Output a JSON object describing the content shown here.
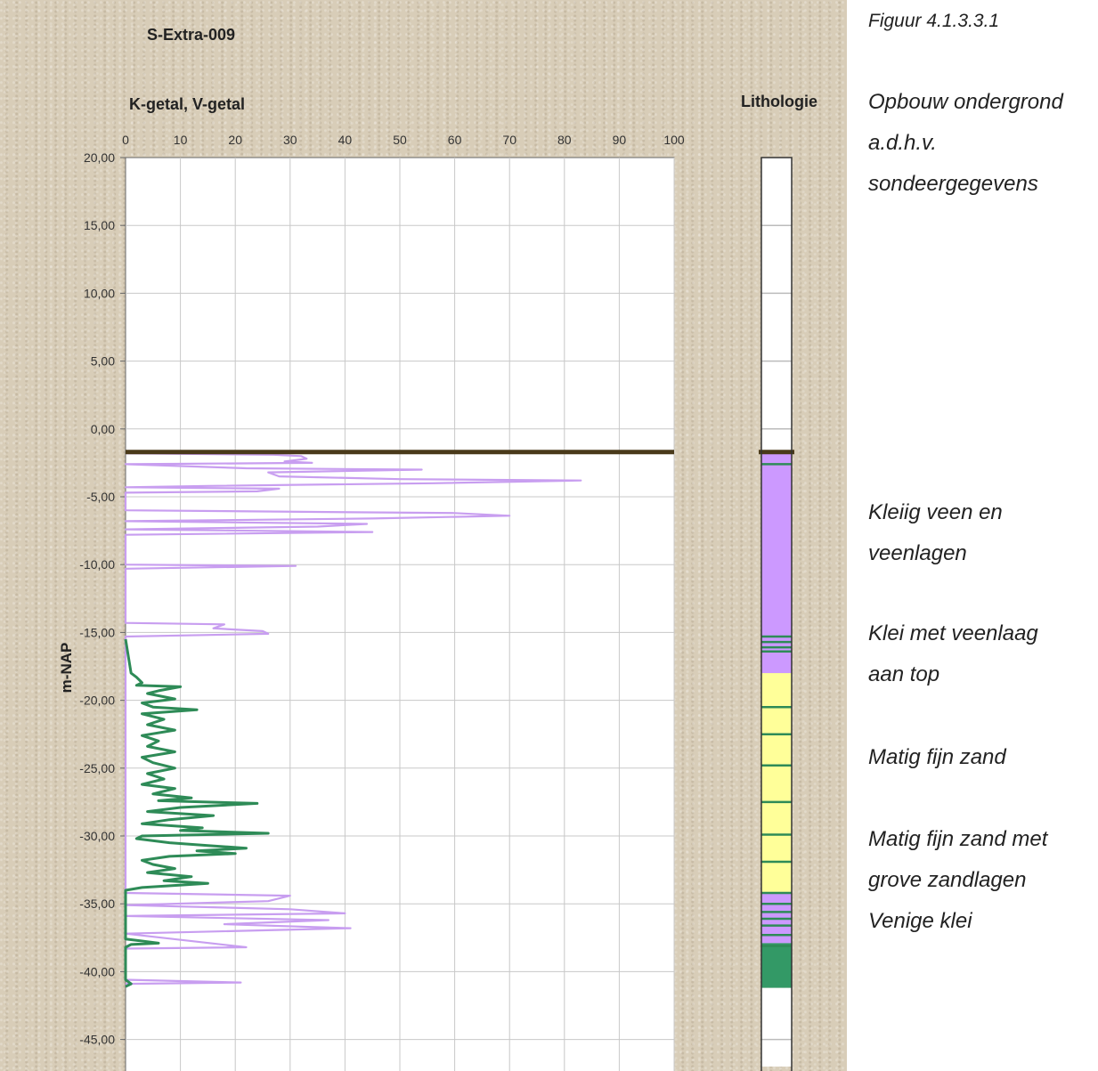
{
  "chart_data": {
    "type": "line",
    "title": "S-Extra-009",
    "xlabel": "K-getal, V-getal",
    "ylabel": "m-NAP",
    "xlim": [
      0,
      100
    ],
    "ylim": [
      -47,
      20
    ],
    "x_ticks": [
      "0",
      "10",
      "20",
      "30",
      "40",
      "50",
      "60",
      "70",
      "80",
      "90",
      "100"
    ],
    "y_ticks": [
      "20,00",
      "15,00",
      "10,00",
      "5,00",
      "0,00",
      "-5,00",
      "-10,00",
      "-15,00",
      "-20,00",
      "-25,00",
      "-30,00",
      "-35,00",
      "-40,00",
      "-45,00"
    ],
    "grid": true,
    "surface_level": -1.7,
    "colors": {
      "V": "#c89ef0",
      "K": "#2e8b57",
      "surface": "#4a3a1a"
    },
    "series": [
      {
        "key": "V",
        "points": [
          [
            0,
            -1.8
          ],
          [
            27,
            -1.9
          ],
          [
            32,
            -2.0
          ],
          [
            33,
            -2.2
          ],
          [
            29,
            -2.4
          ],
          [
            34,
            -2.5
          ],
          [
            0,
            -2.6
          ],
          [
            22,
            -2.9
          ],
          [
            54,
            -3.0
          ],
          [
            26,
            -3.2
          ],
          [
            28,
            -3.5
          ],
          [
            50,
            -3.7
          ],
          [
            83,
            -3.8
          ],
          [
            56,
            -4.0
          ],
          [
            15,
            -4.2
          ],
          [
            0,
            -4.3
          ],
          [
            28,
            -4.4
          ],
          [
            24,
            -4.6
          ],
          [
            0,
            -4.7
          ],
          [
            0,
            -6.0
          ],
          [
            60,
            -6.2
          ],
          [
            70,
            -6.4
          ],
          [
            45,
            -6.6
          ],
          [
            0,
            -6.8
          ],
          [
            44,
            -7.0
          ],
          [
            35,
            -7.2
          ],
          [
            0,
            -7.4
          ],
          [
            45,
            -7.6
          ],
          [
            0,
            -7.8
          ],
          [
            0,
            -10.0
          ],
          [
            31,
            -10.1
          ],
          [
            0,
            -10.3
          ],
          [
            0,
            -14.3
          ],
          [
            18,
            -14.4
          ],
          [
            16,
            -14.7
          ],
          [
            25,
            -14.9
          ],
          [
            26,
            -15.1
          ],
          [
            0,
            -15.3
          ],
          [
            0,
            -34.2
          ],
          [
            30,
            -34.4
          ],
          [
            26,
            -34.8
          ],
          [
            0,
            -35.1
          ],
          [
            30,
            -35.4
          ],
          [
            40,
            -35.7
          ],
          [
            0,
            -35.9
          ],
          [
            37,
            -36.2
          ],
          [
            18,
            -36.5
          ],
          [
            41,
            -36.8
          ],
          [
            0,
            -37.2
          ],
          [
            22,
            -38.2
          ],
          [
            0,
            -38.3
          ],
          [
            0,
            -40.6
          ],
          [
            21,
            -40.8
          ],
          [
            0,
            -40.9
          ]
        ]
      },
      {
        "key": "K",
        "points": [
          [
            0,
            -15.5
          ],
          [
            1,
            -18.0
          ],
          [
            2,
            -18.3
          ],
          [
            3,
            -18.7
          ],
          [
            2,
            -18.9
          ],
          [
            10,
            -19.0
          ],
          [
            6,
            -19.3
          ],
          [
            4,
            -19.5
          ],
          [
            9,
            -19.9
          ],
          [
            3,
            -20.2
          ],
          [
            5,
            -20.5
          ],
          [
            13,
            -20.7
          ],
          [
            3,
            -21.0
          ],
          [
            7,
            -21.4
          ],
          [
            4,
            -21.8
          ],
          [
            9,
            -22.2
          ],
          [
            3,
            -22.6
          ],
          [
            6,
            -23.0
          ],
          [
            4,
            -23.4
          ],
          [
            9,
            -23.8
          ],
          [
            3,
            -24.2
          ],
          [
            5,
            -24.6
          ],
          [
            9,
            -25.0
          ],
          [
            4,
            -25.4
          ],
          [
            7,
            -25.8
          ],
          [
            3,
            -26.2
          ],
          [
            9,
            -26.5
          ],
          [
            5,
            -26.9
          ],
          [
            12,
            -27.2
          ],
          [
            6,
            -27.4
          ],
          [
            24,
            -27.6
          ],
          [
            10,
            -27.9
          ],
          [
            4,
            -28.2
          ],
          [
            16,
            -28.5
          ],
          [
            8,
            -28.8
          ],
          [
            3,
            -29.1
          ],
          [
            14,
            -29.4
          ],
          [
            10,
            -29.6
          ],
          [
            26,
            -29.8
          ],
          [
            3,
            -30.0
          ],
          [
            2,
            -30.2
          ],
          [
            8,
            -30.5
          ],
          [
            15,
            -30.7
          ],
          [
            22,
            -30.9
          ],
          [
            13,
            -31.1
          ],
          [
            20,
            -31.3
          ],
          [
            8,
            -31.5
          ],
          [
            3,
            -31.8
          ],
          [
            5,
            -32.1
          ],
          [
            9,
            -32.4
          ],
          [
            4,
            -32.7
          ],
          [
            12,
            -33.0
          ],
          [
            7,
            -33.3
          ],
          [
            15,
            -33.5
          ],
          [
            3,
            -33.8
          ],
          [
            0,
            -34.0
          ],
          [
            0,
            -37.6
          ],
          [
            2,
            -37.7
          ],
          [
            6,
            -37.9
          ],
          [
            1,
            -38.0
          ],
          [
            0,
            -38.2
          ],
          [
            0,
            -40.6
          ],
          [
            1,
            -40.9
          ],
          [
            0,
            -41.1
          ]
        ]
      }
    ],
    "lithology": {
      "label": "Lithologie",
      "colors": {
        "white": "#ffffff",
        "purple": "#cc99ff",
        "yellow": "#ffff99",
        "green": "#339966",
        "boundary": "#2e8b57"
      },
      "blocks": [
        {
          "from": 20,
          "to": -1.7,
          "fill": "white"
        },
        {
          "from": -1.7,
          "to": -18.0,
          "fill": "purple"
        },
        {
          "from": -18.0,
          "to": -34.2,
          "fill": "yellow"
        },
        {
          "from": -34.2,
          "to": -37.9,
          "fill": "purple"
        },
        {
          "from": -37.9,
          "to": -41.2,
          "fill": "green"
        },
        {
          "from": -41.2,
          "to": -47,
          "fill": "white"
        }
      ],
      "boundaries": [
        -2.6,
        -15.3,
        -15.7,
        -16.1,
        -16.4,
        -20.5,
        -22.5,
        -24.8,
        -27.5,
        -29.9,
        -31.9,
        -34.2,
        -35.0,
        -35.6,
        -36.1,
        -36.6,
        -37.3,
        -38.1
      ],
      "grid_lines": [
        15,
        10,
        5,
        0,
        -45
      ]
    }
  },
  "annotations": {
    "figure_number": "Figuur 4.1.3.3.1",
    "description_lines": [
      "Opbouw ondergrond",
      "a.d.h.v.",
      "sondeergegevens"
    ],
    "layer_labels": [
      {
        "lines": [
          "Kleiig veen en",
          "veenlagen"
        ]
      },
      {
        "lines": [
          "Klei met veenlaag",
          "aan top"
        ]
      },
      {
        "lines": [
          "Matig fijn zand"
        ]
      },
      {
        "lines": [
          "Matig fijn zand met",
          "grove zandlagen"
        ]
      },
      {
        "lines": [
          "Venige klei"
        ]
      }
    ]
  }
}
